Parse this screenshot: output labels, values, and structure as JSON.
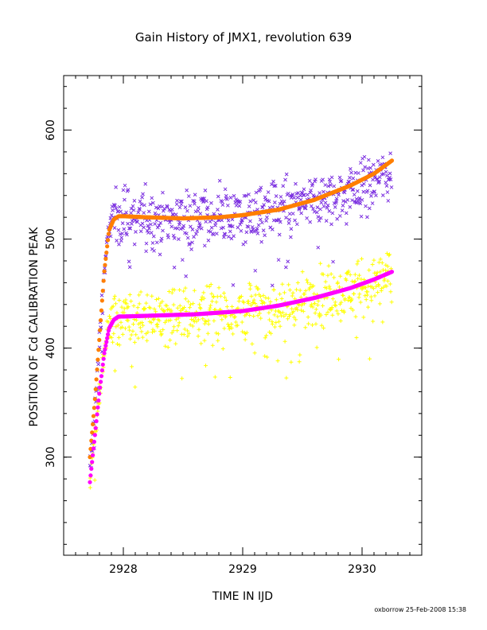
{
  "chart_data": {
    "type": "scatter",
    "title": "Gain History of JMX1, revolution 639",
    "xlabel": "TIME IN IJD",
    "ylabel": "POSITION OF Cd CALIBRATION PEAK",
    "xlim": [
      2927.5,
      2930.5
    ],
    "ylim": [
      210,
      650
    ],
    "x_ticks": [
      "2928",
      "2929",
      "2930"
    ],
    "y_ticks": [
      "300",
      "400",
      "500",
      "600"
    ],
    "grid": false,
    "legend": "none",
    "series": [
      {
        "marker": "x",
        "color": "#7B2FE0",
        "note_curve_points": [
          [
            2927.72,
            285
          ],
          [
            2927.78,
            370
          ],
          [
            2927.82,
            440
          ],
          [
            2927.86,
            495
          ],
          [
            2927.9,
            518
          ],
          [
            2927.95,
            522
          ],
          [
            2928.0,
            521
          ],
          [
            2928.2,
            520
          ],
          [
            2928.6,
            519
          ],
          [
            2929.0,
            521
          ],
          [
            2929.4,
            528
          ],
          [
            2929.8,
            540
          ],
          [
            2930.0,
            548
          ],
          [
            2930.2,
            560
          ],
          [
            2930.25,
            563
          ]
        ]
      },
      {
        "marker": "+",
        "color": "#FFFF00",
        "note_curve_points": [
          [
            2927.72,
            280
          ],
          [
            2927.78,
            340
          ],
          [
            2927.82,
            380
          ],
          [
            2927.86,
            410
          ],
          [
            2927.9,
            425
          ],
          [
            2927.95,
            430
          ],
          [
            2928.0,
            430
          ],
          [
            2928.3,
            430
          ],
          [
            2928.6,
            431
          ],
          [
            2929.0,
            434
          ],
          [
            2929.4,
            440
          ],
          [
            2929.8,
            450
          ],
          [
            2930.0,
            456
          ],
          [
            2930.2,
            463
          ],
          [
            2930.25,
            465
          ]
        ]
      },
      {
        "marker": "line",
        "color": "#FF7F00",
        "points": [
          [
            2927.72,
            300
          ],
          [
            2927.76,
            350
          ],
          [
            2927.8,
            410
          ],
          [
            2927.84,
            470
          ],
          [
            2927.88,
            508
          ],
          [
            2927.92,
            518
          ],
          [
            2927.96,
            521
          ],
          [
            2928.0,
            521
          ],
          [
            2928.2,
            520
          ],
          [
            2928.5,
            519
          ],
          [
            2928.8,
            520
          ],
          [
            2929.0,
            522
          ],
          [
            2929.3,
            527
          ],
          [
            2929.6,
            536
          ],
          [
            2929.9,
            549
          ],
          [
            2930.1,
            560
          ],
          [
            2930.25,
            572
          ]
        ]
      },
      {
        "marker": "line",
        "color": "#FF00FF",
        "points": [
          [
            2927.72,
            277
          ],
          [
            2927.76,
            318
          ],
          [
            2927.8,
            360
          ],
          [
            2927.84,
            395
          ],
          [
            2927.88,
            418
          ],
          [
            2927.92,
            426
          ],
          [
            2927.96,
            429
          ],
          [
            2928.0,
            429
          ],
          [
            2928.3,
            430
          ],
          [
            2928.6,
            431
          ],
          [
            2929.0,
            434
          ],
          [
            2929.3,
            439
          ],
          [
            2929.6,
            446
          ],
          [
            2929.9,
            455
          ],
          [
            2930.1,
            463
          ],
          [
            2930.25,
            470
          ]
        ]
      }
    ]
  },
  "footer": "oxborrow 25-Feb-2008 15:38"
}
